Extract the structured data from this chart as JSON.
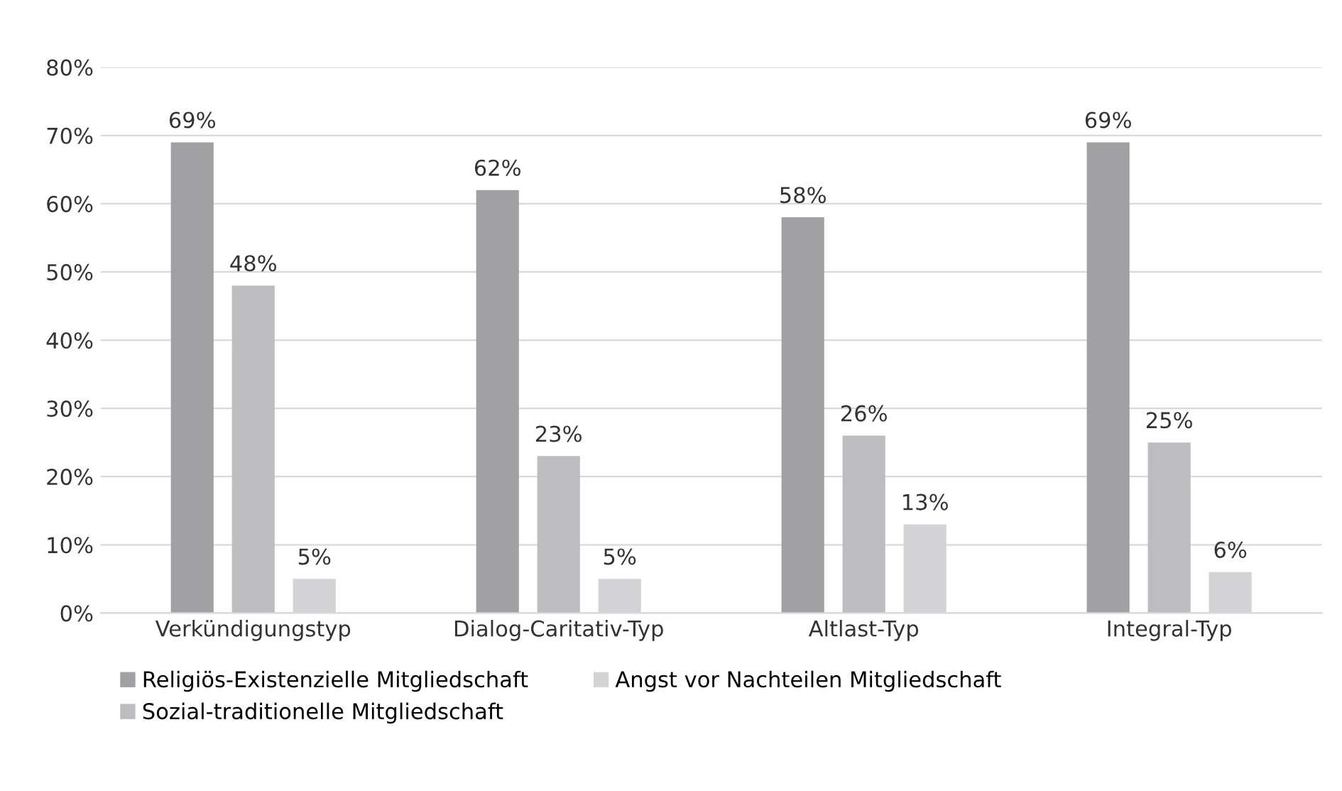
{
  "chart_data": {
    "type": "bar",
    "categories": [
      "Verkündigungstyp",
      "Dialog-Caritativ-Typ",
      "Altlast-Typ",
      "Integral-Typ"
    ],
    "series": [
      {
        "name": "Religiös-Existenzielle Mitgliedschaft",
        "color": "#a1a1a3",
        "values": [
          69,
          62,
          58,
          69
        ]
      },
      {
        "name": "Sozial-traditionelle Mitgliedschaft",
        "color": "#bdbdbf",
        "values": [
          48,
          23,
          26,
          25
        ]
      },
      {
        "name": "Angst vor Nachteilen Mitgliedschaft",
        "color": "#d3d3d5",
        "values": [
          5,
          5,
          13,
          6
        ]
      }
    ],
    "value_labels": [
      [
        "69%",
        "62%",
        "58%",
        "69%"
      ],
      [
        "48%",
        "23%",
        "26%",
        "25%"
      ],
      [
        "5%",
        "5%",
        "13%",
        "6%"
      ]
    ],
    "ylim": [
      0,
      80
    ],
    "yticks": [
      {
        "value": 0,
        "label": "0%"
      },
      {
        "value": 10,
        "label": "10%"
      },
      {
        "value": 20,
        "label": "20%"
      },
      {
        "value": 30,
        "label": "30%"
      },
      {
        "value": 40,
        "label": "40%"
      },
      {
        "value": 50,
        "label": "50%"
      },
      {
        "value": 60,
        "label": "60%"
      },
      {
        "value": 70,
        "label": "70%"
      },
      {
        "value": 80,
        "label": "80%"
      }
    ],
    "grid": "y",
    "legend": "bottom left"
  }
}
